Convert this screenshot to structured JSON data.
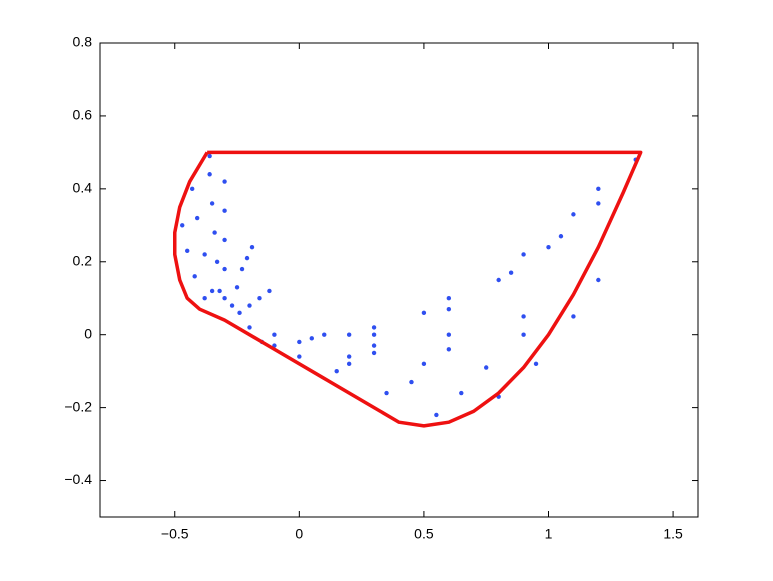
{
  "chart_data": {
    "type": "scatter",
    "xlim": [
      -0.8,
      1.6
    ],
    "ylim": [
      -0.5,
      0.8
    ],
    "xticks": [
      {
        "value": -0.5,
        "label": "−0.5"
      },
      0,
      0.5,
      1,
      1.5
    ],
    "yticks": [
      {
        "value": -0.4,
        "label": "−0.4"
      },
      {
        "value": -0.2,
        "label": "−0.2"
      },
      0,
      0.2,
      0.4,
      0.6,
      0.8
    ],
    "series": [
      {
        "type": "scatter",
        "color": "#2f4ff0",
        "x": [
          -0.32,
          -0.33,
          -0.34,
          -0.35,
          -0.36,
          -0.36,
          -0.3,
          -0.3,
          -0.3,
          -0.3,
          -0.3,
          -0.27,
          -0.25,
          -0.23,
          -0.21,
          -0.19,
          -0.24,
          -0.2,
          -0.16,
          -0.12,
          -0.38,
          -0.42,
          -0.45,
          -0.47,
          -0.35,
          -0.38,
          -0.41,
          -0.43,
          0.2,
          0.5,
          0.8,
          1.0,
          1.2,
          1.35,
          0.3,
          0.6,
          0.9,
          1.1,
          1.2,
          0.3,
          0.6,
          0.85,
          1.05,
          0.3,
          0.6,
          0.9,
          1.2,
          0.3,
          0.6,
          0.9,
          1.1,
          0.2,
          0.5,
          0.75,
          0.95,
          0.2,
          0.45,
          0.65,
          0.8,
          0.15,
          0.35,
          0.55,
          0.0,
          0.05,
          0.1,
          -0.1,
          -0.2,
          -0.1,
          0.0,
          -0.15
        ],
        "y": [
          0.12,
          0.2,
          0.28,
          0.36,
          0.44,
          0.49,
          0.1,
          0.18,
          0.26,
          0.34,
          0.42,
          0.08,
          0.13,
          0.18,
          0.21,
          0.24,
          0.06,
          0.08,
          0.1,
          0.12,
          0.1,
          0.16,
          0.23,
          0.3,
          0.12,
          0.22,
          0.32,
          0.4,
          0.0,
          0.06,
          0.15,
          0.24,
          0.36,
          0.48,
          0.02,
          0.1,
          0.22,
          0.33,
          0.4,
          0.0,
          0.07,
          0.17,
          0.27,
          -0.03,
          0.0,
          0.05,
          0.15,
          -0.05,
          -0.04,
          0.0,
          0.05,
          -0.06,
          -0.08,
          -0.09,
          -0.08,
          -0.08,
          -0.13,
          -0.16,
          -0.17,
          -0.1,
          -0.16,
          -0.22,
          -0.02,
          -0.01,
          0.0,
          0.0,
          0.02,
          -0.03,
          -0.06,
          -0.02
        ]
      },
      {
        "type": "line",
        "color": "#ee1111",
        "x": [
          -0.37,
          1.37,
          1.3,
          1.2,
          1.1,
          1.0,
          0.9,
          0.8,
          0.7,
          0.6,
          0.5,
          0.4,
          0.3,
          0.1,
          -0.1,
          -0.3,
          -0.4,
          -0.45,
          -0.48,
          -0.5,
          -0.5,
          -0.48,
          -0.44,
          -0.37
        ],
        "y": [
          0.5,
          0.5,
          0.39,
          0.24,
          0.11,
          0.0,
          -0.09,
          -0.16,
          -0.21,
          -0.24,
          -0.25,
          -0.24,
          -0.2,
          -0.12,
          -0.04,
          0.04,
          0.07,
          0.1,
          0.15,
          0.22,
          0.28,
          0.35,
          0.42,
          0.5
        ]
      }
    ]
  }
}
